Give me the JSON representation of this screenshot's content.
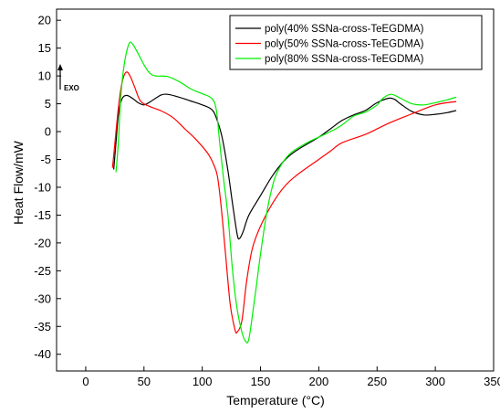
{
  "chart_data": {
    "type": "line",
    "title": "",
    "xlabel": "Temperature (°C)",
    "ylabel": "Heat Flow/mW",
    "xlim": [
      -25,
      350
    ],
    "ylim": [
      -43,
      22
    ],
    "xticks": [
      0,
      50,
      100,
      150,
      200,
      250,
      300,
      350
    ],
    "yticks": [
      20,
      15,
      10,
      5,
      0,
      -5,
      -10,
      -15,
      -20,
      -25,
      -30,
      -35,
      -40
    ],
    "grid": false,
    "legend_position": "top-right",
    "annotation": "EXO",
    "series": [
      {
        "name": "poly(40% SSNa-cross-TeEGDMA)",
        "color": "#000000",
        "points": [
          [
            24,
            -6.8
          ],
          [
            26,
            -2
          ],
          [
            28,
            3
          ],
          [
            31,
            5.8
          ],
          [
            35,
            6.5
          ],
          [
            40,
            6
          ],
          [
            45,
            5.2
          ],
          [
            50,
            4.8
          ],
          [
            55,
            5.3
          ],
          [
            60,
            6
          ],
          [
            65,
            6.6
          ],
          [
            70,
            6.7
          ],
          [
            80,
            6.2
          ],
          [
            90,
            5.5
          ],
          [
            100,
            4.8
          ],
          [
            108,
            4
          ],
          [
            112,
            2.5
          ],
          [
            117,
            -1
          ],
          [
            122,
            -7
          ],
          [
            126,
            -13
          ],
          [
            130,
            -18.5
          ],
          [
            132,
            -19.2
          ],
          [
            135,
            -18
          ],
          [
            140,
            -15
          ],
          [
            150,
            -11.5
          ],
          [
            160,
            -8
          ],
          [
            170,
            -5.3
          ],
          [
            180,
            -3.5
          ],
          [
            200,
            -1
          ],
          [
            210,
            0.5
          ],
          [
            220,
            2
          ],
          [
            230,
            3
          ],
          [
            240,
            3.8
          ],
          [
            250,
            5.2
          ],
          [
            260,
            6
          ],
          [
            265,
            5.8
          ],
          [
            270,
            5
          ],
          [
            280,
            3.6
          ],
          [
            290,
            3
          ],
          [
            300,
            3.1
          ],
          [
            310,
            3.4
          ],
          [
            318,
            3.8
          ]
        ]
      },
      {
        "name": "poly(50% SSNa-cross-TeEGDMA)",
        "color": "#ff0000",
        "points": [
          [
            23,
            -6.5
          ],
          [
            26,
            0
          ],
          [
            29,
            6
          ],
          [
            32,
            9.5
          ],
          [
            35,
            10.7
          ],
          [
            38,
            10
          ],
          [
            42,
            8
          ],
          [
            47,
            5.5
          ],
          [
            55,
            4.5
          ],
          [
            65,
            3.7
          ],
          [
            75,
            2.5
          ],
          [
            85,
            0.5
          ],
          [
            95,
            -1.5
          ],
          [
            105,
            -4
          ],
          [
            110,
            -6
          ],
          [
            113,
            -8
          ],
          [
            116,
            -13
          ],
          [
            120,
            -22
          ],
          [
            124,
            -31
          ],
          [
            128,
            -35.5
          ],
          [
            130,
            -36
          ],
          [
            134,
            -34
          ],
          [
            138,
            -27
          ],
          [
            143,
            -21
          ],
          [
            150,
            -17
          ],
          [
            160,
            -13
          ],
          [
            170,
            -10
          ],
          [
            180,
            -8
          ],
          [
            200,
            -5
          ],
          [
            210,
            -3.5
          ],
          [
            220,
            -2
          ],
          [
            240,
            -0.5
          ],
          [
            260,
            1.5
          ],
          [
            280,
            3.2
          ],
          [
            300,
            4.8
          ],
          [
            318,
            5.4
          ]
        ]
      },
      {
        "name": "poly(80% SSNa-cross-TeEGDMA)",
        "color": "#00ee00",
        "points": [
          [
            26,
            -7.3
          ],
          [
            28,
            -2
          ],
          [
            30,
            6
          ],
          [
            33,
            12
          ],
          [
            37,
            15.7
          ],
          [
            40,
            15.8
          ],
          [
            45,
            14
          ],
          [
            50,
            12
          ],
          [
            55,
            10.5
          ],
          [
            60,
            10
          ],
          [
            70,
            9.9
          ],
          [
            80,
            9
          ],
          [
            90,
            7.7
          ],
          [
            100,
            6.8
          ],
          [
            108,
            6
          ],
          [
            112,
            4
          ],
          [
            115,
            -2
          ],
          [
            118,
            -8
          ],
          [
            122,
            -15
          ],
          [
            126,
            -25
          ],
          [
            130,
            -32
          ],
          [
            134,
            -36
          ],
          [
            137,
            -37.6
          ],
          [
            140,
            -37.2
          ],
          [
            145,
            -30
          ],
          [
            150,
            -22
          ],
          [
            155,
            -15
          ],
          [
            160,
            -10
          ],
          [
            165,
            -7
          ],
          [
            175,
            -4
          ],
          [
            190,
            -2
          ],
          [
            200,
            -1
          ],
          [
            210,
            0
          ],
          [
            220,
            1.2
          ],
          [
            230,
            2.8
          ],
          [
            240,
            3.5
          ],
          [
            250,
            4.8
          ],
          [
            255,
            6
          ],
          [
            262,
            6.7
          ],
          [
            270,
            6
          ],
          [
            280,
            5
          ],
          [
            290,
            4.8
          ],
          [
            300,
            5.2
          ],
          [
            310,
            5.7
          ],
          [
            318,
            6.2
          ]
        ]
      }
    ]
  }
}
